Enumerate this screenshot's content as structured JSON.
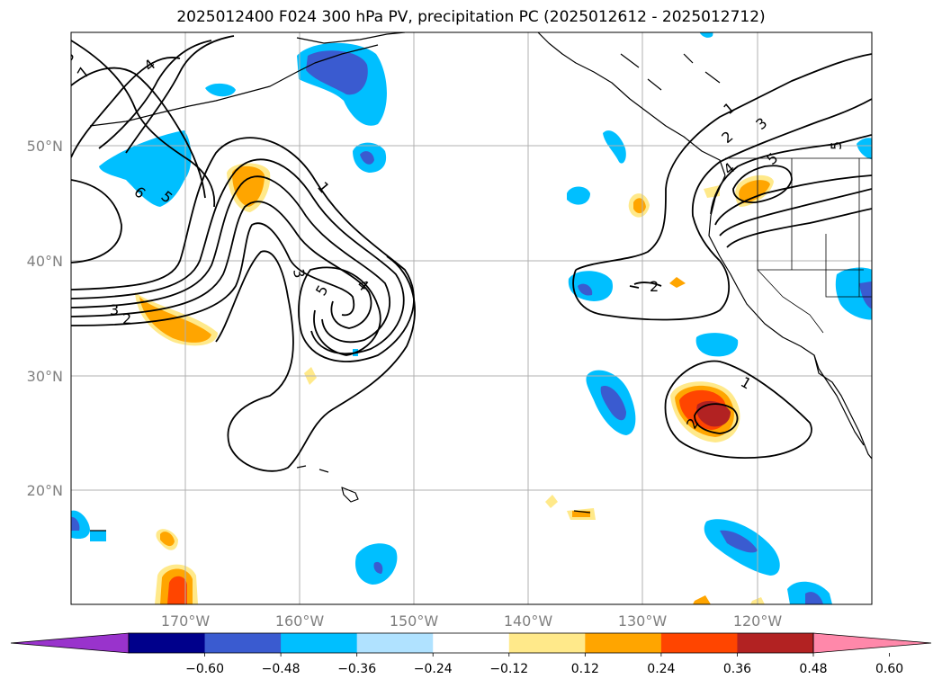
{
  "title": "2025012400 F024 300 hPa PV, precipitation PC (2025012612 - 2025012712)",
  "grid": {
    "lat_labels": [
      "50°N",
      "40°N",
      "30°N",
      "20°N"
    ],
    "lon_labels": [
      "170°W",
      "160°W",
      "150°W",
      "140°W",
      "130°W",
      "120°W"
    ]
  },
  "pv_contour_labels": [
    "8",
    "7",
    "4",
    "6",
    "5",
    "1",
    "3",
    "5",
    "4",
    "3",
    "2",
    "2",
    "1",
    "2",
    "3",
    "4",
    "5",
    "5",
    "1",
    "2"
  ],
  "colorbar": {
    "ticks": [
      "−0.60",
      "−0.48",
      "−0.36",
      "−0.24",
      "−0.12",
      "0.12",
      "0.24",
      "0.36",
      "0.48",
      "0.60"
    ],
    "colors": [
      "#9933cc",
      "#00008b",
      "#3a5bd0",
      "#00bfff",
      "#b0e2ff",
      "#ffffff",
      "#ffe98a",
      "#ffa500",
      "#ff4500",
      "#b22222",
      "#ff88aa"
    ]
  }
}
